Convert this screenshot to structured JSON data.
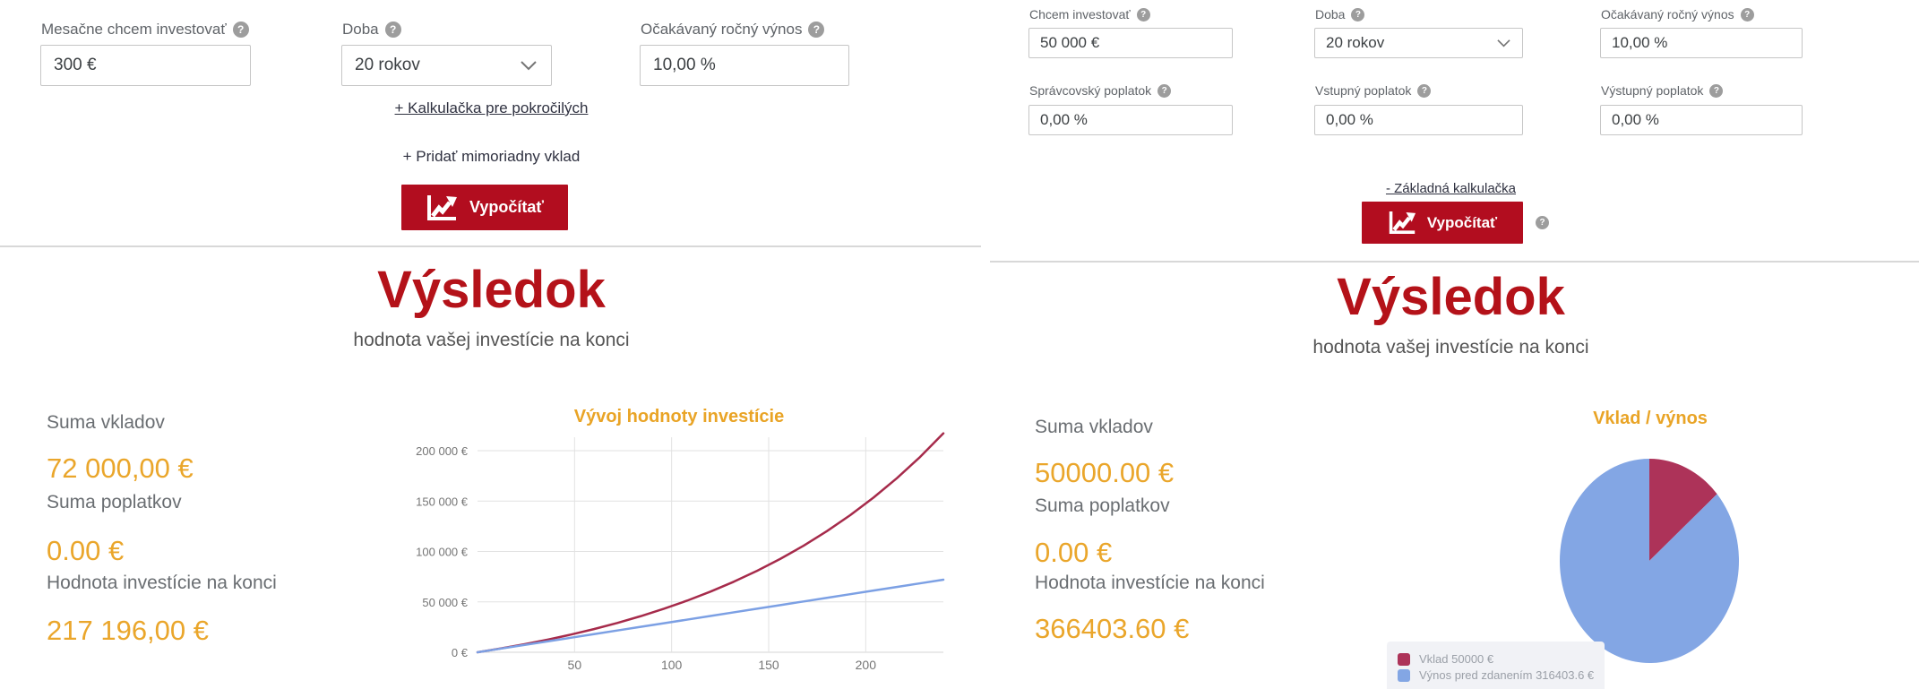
{
  "basic_calculator": {
    "fields": [
      {
        "label": "Mesačne chcem investovať",
        "value": "300 €"
      },
      {
        "label": "Doba",
        "value": "20 rokov"
      },
      {
        "label": "Očakávaný ročný výnos",
        "value": "10,00 %"
      }
    ],
    "advanced_link": "+ Kalkulačka pre pokročilých",
    "extra_deposit_link": "+ Pridať mimoriadny vklad",
    "calculate_button": "Vypočítať",
    "result": {
      "title": "Výsledok",
      "subtitle": "hodnota vašej investície na konci",
      "items": [
        {
          "label": "Suma vkladov",
          "value": "72 000,00 €"
        },
        {
          "label": "Suma poplatkov",
          "value": "0.00 €"
        },
        {
          "label": "Hodnota investície na konci",
          "value": "217 196,00 €"
        }
      ]
    }
  },
  "advanced_calculator": {
    "fields": [
      {
        "label": "Chcem investovať",
        "value": "50 000 €"
      },
      {
        "label": "Doba",
        "value": "20 rokov"
      },
      {
        "label": "Očakávaný ročný výnos",
        "value": "10,00 %"
      },
      {
        "label": "Správcovský poplatok",
        "value": "0,00 %"
      },
      {
        "label": "Vstupný poplatok",
        "value": "0,00 %"
      },
      {
        "label": "Výstupný poplatok",
        "value": "0,00 %"
      }
    ],
    "basic_link": "- Základná kalkulačka",
    "calculate_button": "Vypočítať",
    "result": {
      "title": "Výsledok",
      "subtitle": "hodnota vašej investície na konci",
      "items": [
        {
          "label": "Suma vkladov",
          "value": "50000.00 €"
        },
        {
          "label": "Suma poplatkov",
          "value": "0.00 €"
        },
        {
          "label": "Hodnota investície na konci",
          "value": "366403.60 €"
        }
      ]
    }
  },
  "chart_data": [
    {
      "type": "line",
      "title": "Vývoj hodnoty investície",
      "title_color": "#e9a426",
      "x": [
        0,
        12,
        24,
        36,
        48,
        60,
        72,
        84,
        96,
        108,
        120,
        132,
        144,
        156,
        168,
        180,
        192,
        204,
        216,
        228,
        240
      ],
      "series": [
        {
          "color": "#a62b4b",
          "values": [
            0,
            3763,
            7905,
            12466,
            17482,
            23005,
            29083,
            35770,
            43133,
            51234,
            60152,
            69965,
            80768,
            92656,
            105740,
            120142,
            135991,
            153432,
            172631,
            193761,
            217196
          ]
        },
        {
          "color": "#7ca0e4",
          "values": [
            0,
            3600,
            7200,
            10800,
            14400,
            18000,
            21600,
            25200,
            28800,
            32400,
            36000,
            39600,
            43200,
            46800,
            50400,
            54000,
            57600,
            61200,
            64800,
            68400,
            72000
          ]
        }
      ],
      "x_ticks": [
        50,
        100,
        150,
        200
      ],
      "y_ticks": [
        "0 €",
        "50 000 €",
        "100 000 €",
        "150 000 €",
        "200 000 €"
      ],
      "y_tick_values": [
        0,
        50000,
        100000,
        150000,
        200000
      ],
      "xlim": [
        0,
        240
      ],
      "ylim": [
        0,
        220000
      ],
      "grid": true,
      "legend": "none"
    },
    {
      "type": "pie",
      "title": "Vklad / výnos",
      "title_color": "#e9a426",
      "slices": [
        {
          "label": "Vklad 50000 €",
          "value": 50000,
          "color": "#ad3359"
        },
        {
          "label": "Výnos pred zdanením 316403.6 €",
          "value": 316403.6,
          "color": "#83a6e4"
        }
      ],
      "start_angle": "top",
      "direction": "clockwise",
      "legend_position": "bottom-left"
    }
  ],
  "colors": {
    "button_red": "#b20d1f",
    "heading_red": "#b41219",
    "gold": "#eaa62b"
  }
}
